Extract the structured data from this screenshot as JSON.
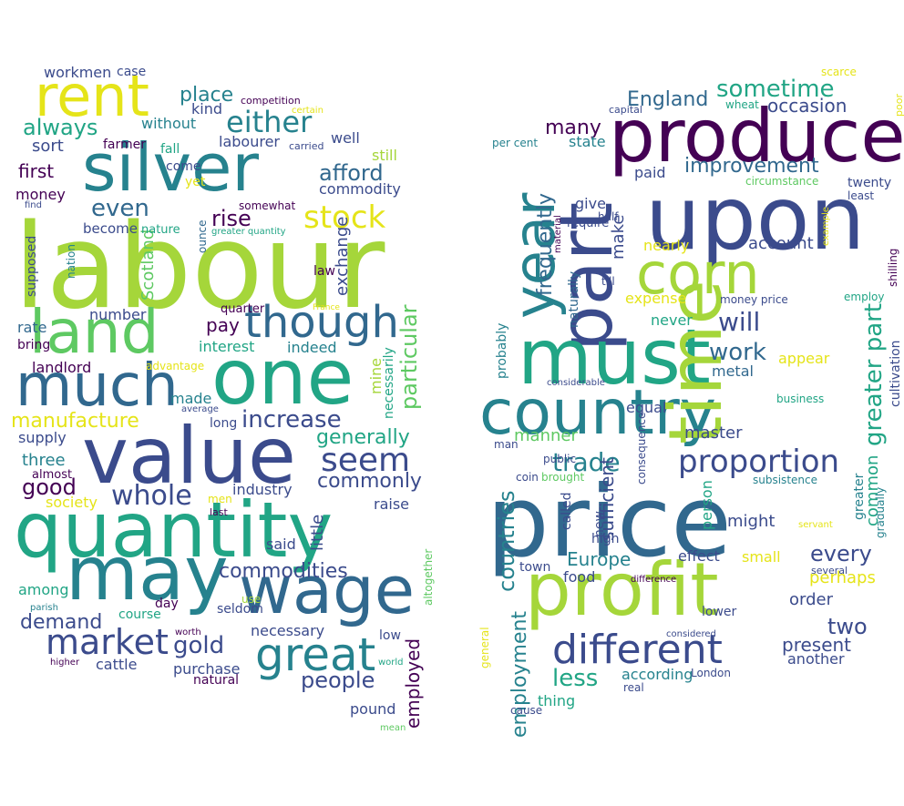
{
  "colors": {
    "dark_purple": "#440154",
    "indigo": "#3b4b8c",
    "blue": "#31688e",
    "teal": "#26828e",
    "green": "#21a585",
    "light_green": "#5ec962",
    "lime": "#a5d63a",
    "yellow": "#e5e419"
  },
  "clouds": [
    {
      "name": "left",
      "words": [
        {
          "text": "labour",
          "color": "lime"
        },
        {
          "text": "silver",
          "color": "teal"
        },
        {
          "text": "rent",
          "color": "yellow"
        },
        {
          "text": "value",
          "color": "indigo"
        },
        {
          "text": "quantity",
          "color": "green"
        },
        {
          "text": "one",
          "color": "green"
        },
        {
          "text": "may",
          "color": "teal"
        },
        {
          "text": "wage",
          "color": "blue"
        },
        {
          "text": "much",
          "color": "blue"
        },
        {
          "text": "land",
          "color": "light_green"
        },
        {
          "text": "though",
          "color": "blue"
        },
        {
          "text": "great",
          "color": "teal"
        },
        {
          "text": "stock",
          "color": "yellow"
        },
        {
          "text": "either",
          "color": "teal"
        },
        {
          "text": "seem",
          "color": "indigo"
        },
        {
          "text": "market",
          "color": "indigo"
        },
        {
          "text": "whole",
          "color": "indigo"
        },
        {
          "text": "increase",
          "color": "indigo"
        },
        {
          "text": "always",
          "color": "green"
        },
        {
          "text": "even",
          "color": "blue"
        },
        {
          "text": "place",
          "color": "teal"
        },
        {
          "text": "rise",
          "color": "dark_purple"
        },
        {
          "text": "afford",
          "color": "blue"
        },
        {
          "text": "commodities",
          "color": "indigo"
        },
        {
          "text": "people",
          "color": "indigo"
        },
        {
          "text": "gold",
          "color": "indigo"
        },
        {
          "text": "demand",
          "color": "indigo"
        },
        {
          "text": "good",
          "color": "dark_purple"
        },
        {
          "text": "generally",
          "color": "green"
        },
        {
          "text": "commonly",
          "color": "indigo"
        },
        {
          "text": "manufacture",
          "color": "yellow"
        },
        {
          "text": "particular",
          "color": "light_green"
        },
        {
          "text": "employed",
          "color": "dark_purple"
        },
        {
          "text": "first",
          "color": "dark_purple"
        },
        {
          "text": "sort",
          "color": "indigo"
        },
        {
          "text": "three",
          "color": "teal"
        },
        {
          "text": "pay",
          "color": "dark_purple"
        },
        {
          "text": "Scotland",
          "color": "light_green"
        },
        {
          "text": "exchange",
          "color": "indigo"
        },
        {
          "text": "little",
          "color": "indigo"
        },
        {
          "text": "necessary",
          "color": "indigo"
        },
        {
          "text": "pound",
          "color": "indigo"
        },
        {
          "text": "commodity",
          "color": "indigo"
        },
        {
          "text": "interest",
          "color": "green"
        },
        {
          "text": "indeed",
          "color": "teal"
        },
        {
          "text": "well",
          "color": "indigo"
        },
        {
          "text": "still",
          "color": "lime"
        },
        {
          "text": "kind",
          "color": "indigo"
        },
        {
          "text": "without",
          "color": "teal"
        },
        {
          "text": "labourer",
          "color": "indigo"
        },
        {
          "text": "workmen",
          "color": "indigo"
        },
        {
          "text": "case",
          "color": "indigo"
        },
        {
          "text": "competition",
          "color": "dark_purple"
        },
        {
          "text": "certain",
          "color": "yellow"
        },
        {
          "text": "farmer",
          "color": "dark_purple"
        },
        {
          "text": "fall",
          "color": "green"
        },
        {
          "text": "carried",
          "color": "indigo"
        },
        {
          "text": "come",
          "color": "indigo"
        },
        {
          "text": "yet",
          "color": "yellow"
        },
        {
          "text": "money",
          "color": "dark_purple"
        },
        {
          "text": "find",
          "color": "indigo"
        },
        {
          "text": "nature",
          "color": "green"
        },
        {
          "text": "ounce",
          "color": "blue"
        },
        {
          "text": "somewhat",
          "color": "dark_purple"
        },
        {
          "text": "become",
          "color": "indigo"
        },
        {
          "text": "greater quantity",
          "color": "green"
        },
        {
          "text": "supposed",
          "color": "indigo"
        },
        {
          "text": "nation",
          "color": "teal"
        },
        {
          "text": "law",
          "color": "dark_purple"
        },
        {
          "text": "number",
          "color": "indigo"
        },
        {
          "text": "quarter",
          "color": "dark_purple"
        },
        {
          "text": "France",
          "color": "yellow"
        },
        {
          "text": "rate",
          "color": "blue"
        },
        {
          "text": "bring",
          "color": "dark_purple"
        },
        {
          "text": "landlord",
          "color": "dark_purple"
        },
        {
          "text": "advantage",
          "color": "yellow"
        },
        {
          "text": "mine",
          "color": "lime"
        },
        {
          "text": "necessarily",
          "color": "green"
        },
        {
          "text": "made",
          "color": "teal"
        },
        {
          "text": "average",
          "color": "indigo"
        },
        {
          "text": "long",
          "color": "indigo"
        },
        {
          "text": "supply",
          "color": "indigo"
        },
        {
          "text": "almost",
          "color": "dark_purple"
        },
        {
          "text": "society",
          "color": "yellow"
        },
        {
          "text": "industry",
          "color": "indigo"
        },
        {
          "text": "men",
          "color": "yellow"
        },
        {
          "text": "last",
          "color": "dark_purple"
        },
        {
          "text": "raise",
          "color": "indigo"
        },
        {
          "text": "said",
          "color": "indigo"
        },
        {
          "text": "among",
          "color": "green"
        },
        {
          "text": "day",
          "color": "dark_purple"
        },
        {
          "text": "use",
          "color": "lime"
        },
        {
          "text": "seldom",
          "color": "indigo"
        },
        {
          "text": "parish",
          "color": "teal"
        },
        {
          "text": "course",
          "color": "green"
        },
        {
          "text": "worth",
          "color": "dark_purple"
        },
        {
          "text": "low",
          "color": "indigo"
        },
        {
          "text": "altogether",
          "color": "light_green"
        },
        {
          "text": "cattle",
          "color": "indigo"
        },
        {
          "text": "purchase",
          "color": "indigo"
        },
        {
          "text": "natural",
          "color": "dark_purple"
        },
        {
          "text": "world",
          "color": "green"
        },
        {
          "text": "higher",
          "color": "dark_purple"
        },
        {
          "text": "mean",
          "color": "light_green"
        }
      ]
    },
    {
      "name": "right",
      "words": [
        {
          "text": "price",
          "color": "blue"
        },
        {
          "text": "upon",
          "color": "indigo"
        },
        {
          "text": "produce",
          "color": "dark_purple"
        },
        {
          "text": "part",
          "color": "indigo"
        },
        {
          "text": "must",
          "color": "green"
        },
        {
          "text": "country",
          "color": "teal"
        },
        {
          "text": "profit",
          "color": "lime"
        },
        {
          "text": "time",
          "color": "lime"
        },
        {
          "text": "corn",
          "color": "lime"
        },
        {
          "text": "year",
          "color": "teal"
        },
        {
          "text": "different",
          "color": "indigo"
        },
        {
          "text": "proportion",
          "color": "indigo"
        },
        {
          "text": "greater part",
          "color": "green"
        },
        {
          "text": "sometime",
          "color": "green"
        },
        {
          "text": "England",
          "color": "blue"
        },
        {
          "text": "improvement",
          "color": "blue"
        },
        {
          "text": "will",
          "color": "indigo"
        },
        {
          "text": "work",
          "color": "blue"
        },
        {
          "text": "trade",
          "color": "teal"
        },
        {
          "text": "less",
          "color": "green"
        },
        {
          "text": "countries",
          "color": "teal"
        },
        {
          "text": "employment",
          "color": "teal"
        },
        {
          "text": "frequently",
          "color": "blue"
        },
        {
          "text": "many",
          "color": "dark_purple"
        },
        {
          "text": "occasion",
          "color": "indigo"
        },
        {
          "text": "account",
          "color": "indigo"
        },
        {
          "text": "make",
          "color": "indigo"
        },
        {
          "text": "expense",
          "color": "yellow"
        },
        {
          "text": "metal",
          "color": "blue"
        },
        {
          "text": "master",
          "color": "indigo"
        },
        {
          "text": "sufficient",
          "color": "indigo"
        },
        {
          "text": "Europe",
          "color": "teal"
        },
        {
          "text": "every",
          "color": "indigo"
        },
        {
          "text": "two",
          "color": "indigo"
        },
        {
          "text": "present",
          "color": "indigo"
        },
        {
          "text": "perhaps",
          "color": "yellow"
        },
        {
          "text": "order",
          "color": "indigo"
        },
        {
          "text": "according",
          "color": "teal"
        },
        {
          "text": "another",
          "color": "indigo"
        },
        {
          "text": "common",
          "color": "green"
        },
        {
          "text": "might",
          "color": "indigo"
        },
        {
          "text": "effect",
          "color": "indigo"
        },
        {
          "text": "small",
          "color": "yellow"
        },
        {
          "text": "manner",
          "color": "light_green"
        },
        {
          "text": "equal",
          "color": "indigo"
        },
        {
          "text": "state",
          "color": "teal"
        },
        {
          "text": "paid",
          "color": "indigo"
        },
        {
          "text": "give",
          "color": "indigo"
        },
        {
          "text": "nearly",
          "color": "yellow"
        },
        {
          "text": "never",
          "color": "green"
        },
        {
          "text": "appear",
          "color": "yellow"
        },
        {
          "text": "cultivation",
          "color": "indigo"
        },
        {
          "text": "twenty",
          "color": "indigo"
        },
        {
          "text": "least",
          "color": "indigo"
        },
        {
          "text": "scarce",
          "color": "yellow"
        },
        {
          "text": "capital",
          "color": "indigo"
        },
        {
          "text": "wheat",
          "color": "green"
        },
        {
          "text": "poor",
          "color": "yellow"
        },
        {
          "text": "circumstance",
          "color": "light_green"
        },
        {
          "text": "per cent",
          "color": "teal"
        },
        {
          "text": "half",
          "color": "indigo"
        },
        {
          "text": "material",
          "color": "dark_purple"
        },
        {
          "text": "require",
          "color": "indigo"
        },
        {
          "text": "till",
          "color": "indigo"
        },
        {
          "text": "naturally",
          "color": "blue"
        },
        {
          "text": "money price",
          "color": "indigo"
        },
        {
          "text": "employ",
          "color": "green"
        },
        {
          "text": "shilling",
          "color": "dark_purple"
        },
        {
          "text": "example",
          "color": "yellow"
        },
        {
          "text": "probably",
          "color": "teal"
        },
        {
          "text": "considerable",
          "color": "indigo"
        },
        {
          "text": "business",
          "color": "green"
        },
        {
          "text": "man",
          "color": "indigo"
        },
        {
          "text": "public",
          "color": "indigo"
        },
        {
          "text": "consequence",
          "color": "indigo"
        },
        {
          "text": "coin",
          "color": "indigo"
        },
        {
          "text": "brought",
          "color": "light_green"
        },
        {
          "text": "subsistence",
          "color": "teal"
        },
        {
          "text": "called",
          "color": "indigo"
        },
        {
          "text": "new",
          "color": "indigo"
        },
        {
          "text": "high",
          "color": "indigo"
        },
        {
          "text": "person",
          "color": "green"
        },
        {
          "text": "servant",
          "color": "yellow"
        },
        {
          "text": "greater",
          "color": "teal"
        },
        {
          "text": "gradually",
          "color": "teal"
        },
        {
          "text": "several",
          "color": "indigo"
        },
        {
          "text": "town",
          "color": "indigo"
        },
        {
          "text": "food",
          "color": "indigo"
        },
        {
          "text": "difference",
          "color": "dark_purple"
        },
        {
          "text": "lower",
          "color": "indigo"
        },
        {
          "text": "general",
          "color": "yellow"
        },
        {
          "text": "considered",
          "color": "indigo"
        },
        {
          "text": "London",
          "color": "indigo"
        },
        {
          "text": "real",
          "color": "indigo"
        },
        {
          "text": "thing",
          "color": "green"
        },
        {
          "text": "cause",
          "color": "indigo"
        }
      ]
    }
  ]
}
